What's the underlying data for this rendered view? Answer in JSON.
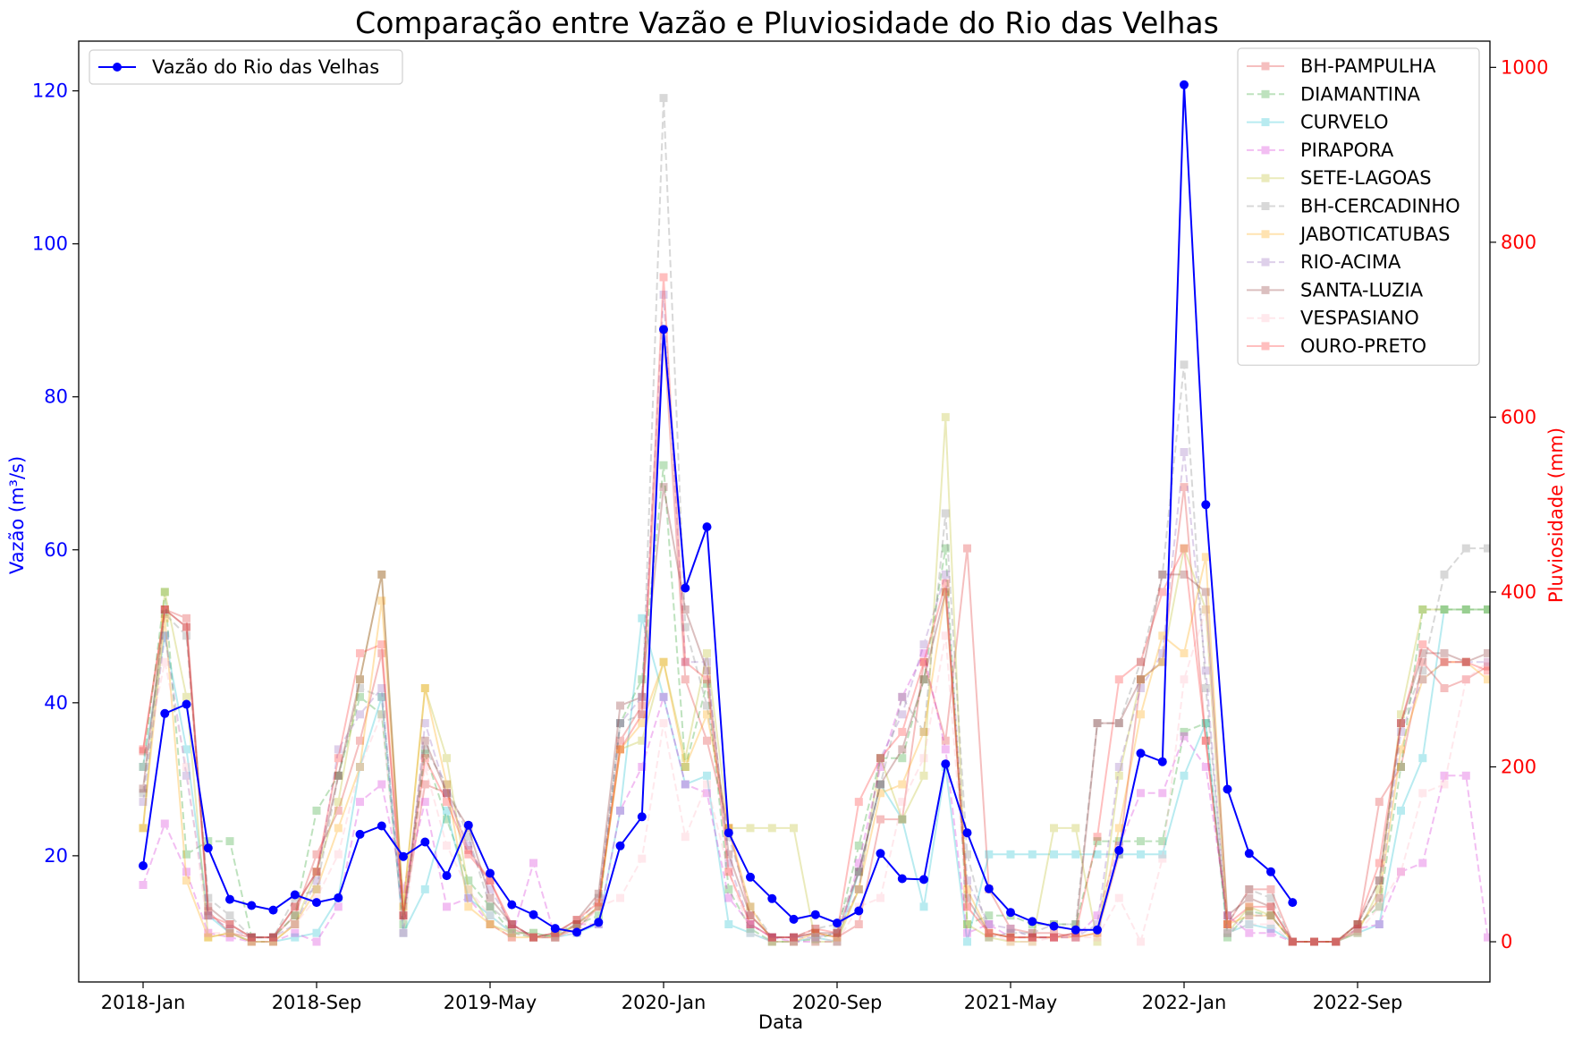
{
  "chart_data": {
    "type": "line",
    "title": "Comparação entre Vazão e Pluviosidade do Rio das Velhas",
    "xlabel": "Data",
    "ylabel_left": "Vazão (m³/s)",
    "ylabel_right": "Pluviosidade (mm)",
    "x_ticks": [
      "2018-Jan",
      "2018-Sep",
      "2019-May",
      "2020-Jan",
      "2020-Sep",
      "2021-May",
      "2022-Jan",
      "2022-Sep"
    ],
    "x_months": [
      "2018-Jan",
      "2018-Feb",
      "2018-Mar",
      "2018-Apr",
      "2018-May",
      "2018-Jun",
      "2018-Jul",
      "2018-Aug",
      "2018-Sep",
      "2018-Oct",
      "2018-Nov",
      "2018-Dec",
      "2019-Jan",
      "2019-Feb",
      "2019-Mar",
      "2019-Apr",
      "2019-May",
      "2019-Jun",
      "2019-Jul",
      "2019-Aug",
      "2019-Sep",
      "2019-Oct",
      "2019-Nov",
      "2019-Dec",
      "2020-Jan",
      "2020-Feb",
      "2020-Mar",
      "2020-Apr",
      "2020-May",
      "2020-Jun",
      "2020-Jul",
      "2020-Aug",
      "2020-Sep",
      "2020-Oct",
      "2020-Nov",
      "2020-Dec",
      "2021-Jan",
      "2021-Feb",
      "2021-Mar",
      "2021-Apr",
      "2021-May",
      "2021-Jun",
      "2021-Jul",
      "2021-Aug",
      "2021-Sep",
      "2021-Oct",
      "2021-Nov",
      "2021-Dec",
      "2022-Jan",
      "2022-Feb",
      "2022-Mar",
      "2022-Apr",
      "2022-May",
      "2022-Jun",
      "2022-Jul",
      "2022-Aug",
      "2022-Sep",
      "2022-Oct",
      "2022-Nov",
      "2022-Dec",
      "2023-Jan",
      "2023-Feb",
      "2023-Mar"
    ],
    "y_left_ticks": [
      20,
      40,
      60,
      80,
      100,
      120
    ],
    "y_left_range": [
      3.5,
      126.5
    ],
    "y_right_ticks": [
      0,
      200,
      400,
      600,
      800,
      1000
    ],
    "y_right_range": [
      -46,
      1030
    ],
    "legend_left": "upper-left",
    "legend_right": "upper-right",
    "grid": false,
    "flow_series": {
      "name": "Vazão do Rio das Velhas",
      "color": "#0000ff",
      "values": [
        18.7,
        38.6,
        39.8,
        21.0,
        14.3,
        13.5,
        12.9,
        14.9,
        13.9,
        14.5,
        22.8,
        23.9,
        19.9,
        21.8,
        17.4,
        24.0,
        17.7,
        13.6,
        12.3,
        10.5,
        10.0,
        11.3,
        21.3,
        25.1,
        88.8,
        55.0,
        63.0,
        23.0,
        17.2,
        14.4,
        11.7,
        12.3,
        11.2,
        12.8,
        20.3,
        17.0,
        16.9,
        32.0,
        23.0,
        15.7,
        12.6,
        11.4,
        10.8,
        10.3,
        10.3,
        20.7,
        33.4,
        32.3,
        120.8,
        65.9,
        28.7,
        20.3,
        17.9,
        13.9,
        null,
        null,
        null,
        null,
        null,
        null,
        null,
        null,
        null
      ]
    },
    "rain_series": [
      {
        "name": "BH-PAMPULHA",
        "color": "#e03030",
        "dash": false,
        "values": [
          218,
          380,
          370,
          35,
          10,
          5,
          5,
          30,
          100,
          150,
          230,
          330,
          30,
          180,
          170,
          105,
          70,
          15,
          5,
          5,
          15,
          40,
          230,
          270,
          700,
          300,
          230,
          130,
          30,
          5,
          5,
          10,
          5,
          20,
          140,
          140,
          320,
          230,
          450,
          60,
          15,
          10,
          10,
          5,
          10,
          100,
          300,
          320,
          520,
          230,
          20,
          60,
          60,
          0,
          0,
          0,
          12,
          160,
          200,
          320,
          290,
          300,
          315
        ]
      },
      {
        "name": "DIAMANTINA",
        "color": "#2ca02c",
        "dash": true,
        "values": [
          200,
          400,
          100,
          115,
          115,
          5,
          5,
          30,
          150,
          190,
          280,
          260,
          20,
          215,
          140,
          70,
          40,
          10,
          5,
          8,
          20,
          30,
          250,
          300,
          545,
          200,
          295,
          60,
          15,
          0,
          0,
          3,
          10,
          110,
          210,
          210,
          300,
          450,
          20,
          30,
          30,
          20,
          20,
          20,
          115,
          115,
          115,
          115,
          240,
          250,
          5,
          35,
          30,
          0,
          0,
          0,
          20,
          40,
          200,
          380,
          380,
          380,
          380
        ]
      },
      {
        "name": "CURVELO",
        "color": "#17becf",
        "dash": false,
        "values": [
          200,
          350,
          220,
          30,
          10,
          0,
          0,
          5,
          10,
          50,
          200,
          280,
          10,
          60,
          150,
          50,
          30,
          10,
          10,
          5,
          10,
          20,
          150,
          370,
          280,
          180,
          190,
          20,
          10,
          0,
          0,
          5,
          0,
          80,
          180,
          140,
          40,
          200,
          0,
          100,
          100,
          100,
          100,
          100,
          100,
          100,
          100,
          100,
          190,
          250,
          10,
          20,
          15,
          0,
          0,
          0,
          10,
          20,
          150,
          210,
          380,
          380,
          380
        ]
      },
      {
        "name": "PIRAPORA",
        "color": "#d62ad6",
        "dash": true,
        "values": [
          65,
          135,
          80,
          10,
          5,
          0,
          0,
          10,
          0,
          40,
          160,
          180,
          60,
          160,
          40,
          50,
          20,
          5,
          90,
          5,
          20,
          20,
          150,
          200,
          280,
          180,
          170,
          50,
          20,
          5,
          0,
          0,
          0,
          90,
          200,
          280,
          330,
          220,
          10,
          20,
          5,
          5,
          5,
          5,
          30,
          110,
          170,
          170,
          235,
          200,
          30,
          10,
          10,
          0,
          0,
          0,
          15,
          20,
          80,
          90,
          190,
          190,
          5
        ]
      },
      {
        "name": "SETE-LAGOAS",
        "color": "#bcbd22",
        "dash": false,
        "values": [
          130,
          400,
          280,
          5,
          10,
          0,
          0,
          20,
          80,
          160,
          300,
          420,
          40,
          290,
          210,
          60,
          20,
          10,
          10,
          5,
          20,
          40,
          220,
          230,
          320,
          210,
          330,
          130,
          130,
          130,
          130,
          0,
          0,
          60,
          210,
          140,
          190,
          600,
          20,
          5,
          0,
          0,
          130,
          130,
          0,
          190,
          300,
          320,
          450,
          380,
          10,
          40,
          30,
          0,
          0,
          0,
          10,
          60,
          260,
          380,
          380,
          380,
          380
        ]
      },
      {
        "name": "BH-CERCADINHO",
        "color": "#7f7f7f",
        "dash": true,
        "values": [
          170,
          375,
          350,
          50,
          30,
          5,
          5,
          50,
          60,
          190,
          290,
          280,
          30,
          220,
          180,
          120,
          40,
          20,
          5,
          10,
          20,
          50,
          250,
          260,
          965,
          360,
          270,
          120,
          40,
          5,
          5,
          15,
          20,
          80,
          180,
          280,
          240,
          490,
          100,
          5,
          10,
          10,
          20,
          20,
          250,
          250,
          320,
          420,
          660,
          290,
          20,
          60,
          50,
          0,
          0,
          0,
          20,
          70,
          250,
          310,
          420,
          450,
          450
        ]
      },
      {
        "name": "JABOTICATUBAS",
        "color": "#ffa500",
        "dash": false,
        "values": [
          130,
          370,
          70,
          5,
          10,
          0,
          0,
          20,
          60,
          130,
          200,
          390,
          40,
          290,
          180,
          40,
          20,
          5,
          5,
          5,
          20,
          40,
          220,
          250,
          320,
          200,
          260,
          130,
          40,
          0,
          0,
          10,
          5,
          60,
          170,
          180,
          240,
          400,
          60,
          10,
          5,
          5,
          5,
          5,
          10,
          130,
          260,
          350,
          330,
          440,
          20,
          30,
          30,
          0,
          0,
          0,
          15,
          50,
          220,
          300,
          320,
          320,
          300
        ]
      },
      {
        "name": "RIO-ACIMA",
        "color": "#9467bd",
        "dash": true,
        "values": [
          160,
          350,
          190,
          30,
          15,
          5,
          5,
          20,
          70,
          220,
          260,
          290,
          10,
          250,
          170,
          110,
          60,
          20,
          5,
          5,
          20,
          40,
          250,
          280,
          740,
          320,
          320,
          90,
          20,
          5,
          5,
          5,
          10,
          60,
          210,
          260,
          340,
          420,
          70,
          20,
          15,
          5,
          5,
          5,
          20,
          200,
          290,
          330,
          560,
          310,
          10,
          30,
          30,
          0,
          0,
          0,
          15,
          50,
          240,
          300,
          320,
          320,
          320
        ]
      },
      {
        "name": "SANTA-LUZIA",
        "color": "#8c3030",
        "dash": false,
        "values": [
          175,
          380,
          360,
          40,
          20,
          5,
          5,
          40,
          80,
          190,
          300,
          420,
          30,
          230,
          170,
          130,
          50,
          20,
          5,
          10,
          25,
          55,
          270,
          280,
          520,
          380,
          310,
          100,
          30,
          5,
          5,
          10,
          10,
          80,
          180,
          220,
          300,
          400,
          50,
          10,
          5,
          5,
          5,
          10,
          250,
          250,
          300,
          420,
          420,
          400,
          30,
          50,
          40,
          0,
          0,
          0,
          20,
          70,
          250,
          330,
          330,
          320,
          330
        ]
      },
      {
        "name": "VESPASIANO",
        "color": "#ffb6c1",
        "dash": true,
        "values": [
          200,
          320,
          200,
          10,
          10,
          0,
          0,
          20,
          50,
          100,
          200,
          260,
          10,
          200,
          110,
          60,
          30,
          10,
          5,
          5,
          10,
          40,
          50,
          95,
          250,
          120,
          180,
          80,
          10,
          0,
          0,
          5,
          0,
          40,
          50,
          160,
          210,
          350,
          40,
          10,
          0,
          0,
          5,
          5,
          5,
          50,
          0,
          95,
          300,
          380,
          10,
          20,
          20,
          0,
          0,
          0,
          10,
          40,
          80,
          170,
          180,
          300,
          320
        ]
      },
      {
        "name": "OURO-PRETO",
        "color": "#ff3030",
        "dash": false,
        "values": [
          220,
          380,
          360,
          30,
          20,
          5,
          5,
          40,
          80,
          210,
          330,
          340,
          30,
          210,
          160,
          100,
          70,
          20,
          5,
          10,
          25,
          45,
          220,
          260,
          760,
          320,
          300,
          80,
          20,
          5,
          5,
          15,
          10,
          160,
          210,
          240,
          320,
          410,
          40,
          10,
          5,
          5,
          5,
          10,
          120,
          300,
          320,
          400,
          450,
          230,
          20,
          40,
          40,
          0,
          0,
          0,
          20,
          90,
          250,
          340,
          320,
          320,
          310
        ]
      }
    ]
  }
}
